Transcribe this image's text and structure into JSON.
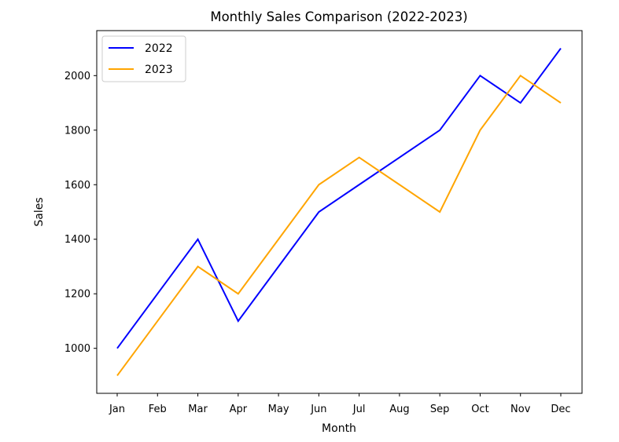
{
  "chart_data": {
    "type": "line",
    "title": "Monthly Sales Comparison (2022-2023)",
    "xlabel": "Month",
    "ylabel": "Sales",
    "categories": [
      "Jan",
      "Feb",
      "Mar",
      "Apr",
      "May",
      "Jun",
      "Jul",
      "Aug",
      "Sep",
      "Oct",
      "Nov",
      "Dec"
    ],
    "ylim": [
      835,
      2165
    ],
    "yticks": [
      1000,
      1200,
      1400,
      1600,
      1800,
      2000
    ],
    "grid": false,
    "legend_position": "top-left",
    "series": [
      {
        "name": "2022",
        "color": "#0000ff",
        "values": [
          1000,
          1200,
          1400,
          1100,
          1300,
          1500,
          1600,
          1700,
          1800,
          2000,
          1900,
          2100
        ]
      },
      {
        "name": "2023",
        "color": "#ffa500",
        "values": [
          900,
          1100,
          1300,
          1200,
          1400,
          1600,
          1700,
          1600,
          1500,
          1800,
          2000,
          1900
        ]
      }
    ]
  }
}
